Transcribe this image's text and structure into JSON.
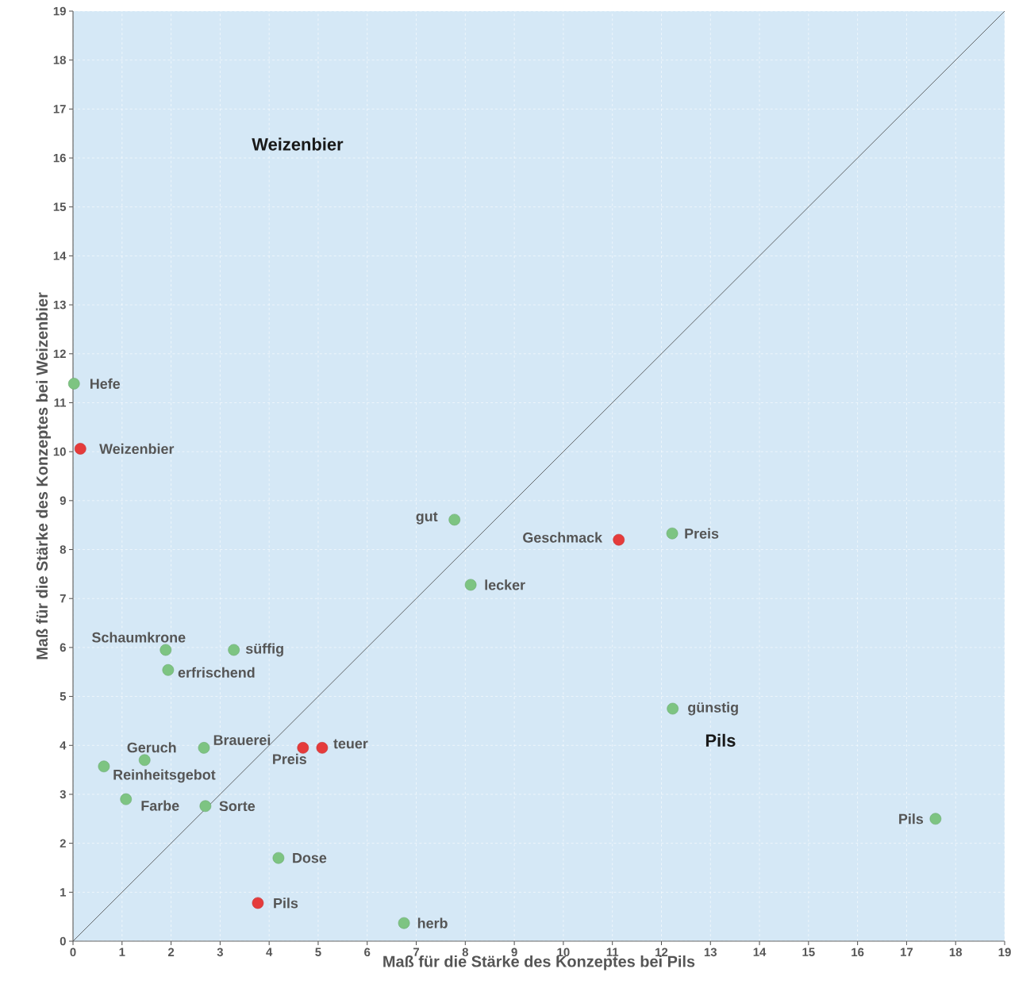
{
  "chart_data": {
    "type": "scatter",
    "xlabel": "Maß für die Stärke des Konzeptes bei Pils",
    "ylabel": "Maß für die Stärke des Konzeptes bei Weizenbier",
    "xlim": [
      0,
      19
    ],
    "ylim": [
      0,
      19
    ],
    "xticks": [
      0,
      1,
      2,
      3,
      4,
      5,
      6,
      7,
      8,
      9,
      10,
      11,
      12,
      13,
      14,
      15,
      16,
      17,
      18,
      19
    ],
    "yticks": [
      0,
      1,
      2,
      3,
      4,
      5,
      6,
      7,
      8,
      9,
      10,
      11,
      12,
      13,
      14,
      15,
      16,
      17,
      18,
      19
    ],
    "grid": true,
    "series": [
      {
        "marker": "circle",
        "color": "#7dc482",
        "x": [
          0.02,
          7.78,
          12.22,
          8.11,
          1.89,
          3.28,
          1.94,
          12.23,
          2.67,
          1.46,
          0.63,
          1.08,
          2.7,
          17.59,
          4.19,
          6.75
        ],
        "values": [
          11.39,
          8.61,
          8.33,
          7.28,
          5.95,
          5.95,
          5.54,
          4.75,
          3.95,
          3.7,
          3.57,
          2.9,
          2.76,
          2.5,
          1.7,
          0.37
        ]
      },
      {
        "marker": "circle",
        "color": "#e53b3b",
        "x": [
          0.15,
          11.13,
          4.69,
          5.08,
          3.77
        ],
        "values": [
          10.06,
          8.2,
          3.95,
          3.95,
          0.78
        ]
      },
      {
        "type": "line",
        "marker": "none",
        "color": "#444444",
        "x": [
          0,
          19
        ],
        "values": [
          0,
          19
        ]
      }
    ],
    "annotations": [
      "Weizenbier",
      "Pils",
      {
        "text": "Hefe",
        "x": 0.02,
        "y": 11.39
      },
      {
        "text": "Weizenbier",
        "x": 0.15,
        "y": 10.06
      },
      {
        "text": "gut",
        "x": 7.78,
        "y": 8.61
      },
      {
        "text": "Geschmack",
        "x": 11.13,
        "y": 8.2
      },
      {
        "text": "Preis",
        "x": 12.22,
        "y": 8.33
      },
      {
        "text": "lecker",
        "x": 8.11,
        "y": 7.28
      },
      {
        "text": "Schaumkrone",
        "x": 1.89,
        "y": 5.95
      },
      {
        "text": "süffig",
        "x": 3.28,
        "y": 5.95
      },
      {
        "text": "erfrischend",
        "x": 1.94,
        "y": 5.54
      },
      {
        "text": "günstig",
        "x": 12.23,
        "y": 4.75
      },
      {
        "text": "Brauerei",
        "x": 2.67,
        "y": 3.95
      },
      {
        "text": "Preis",
        "x": 4.69,
        "y": 3.95
      },
      {
        "text": "teuer",
        "x": 5.08,
        "y": 3.95
      },
      {
        "text": "Geruch",
        "x": 1.46,
        "y": 3.7
      },
      {
        "text": "Reinheitsgebot",
        "x": 0.63,
        "y": 3.57
      },
      {
        "text": "Farbe",
        "x": 1.08,
        "y": 2.9
      },
      {
        "text": "Sorte",
        "x": 2.7,
        "y": 2.76
      },
      {
        "text": "Pils",
        "x": 17.59,
        "y": 2.5
      },
      {
        "text": "Dose",
        "x": 4.19,
        "y": 1.7
      },
      {
        "text": "Pils",
        "x": 3.77,
        "y": 0.78
      },
      {
        "text": "herb",
        "x": 6.75,
        "y": 0.37
      }
    ]
  }
}
